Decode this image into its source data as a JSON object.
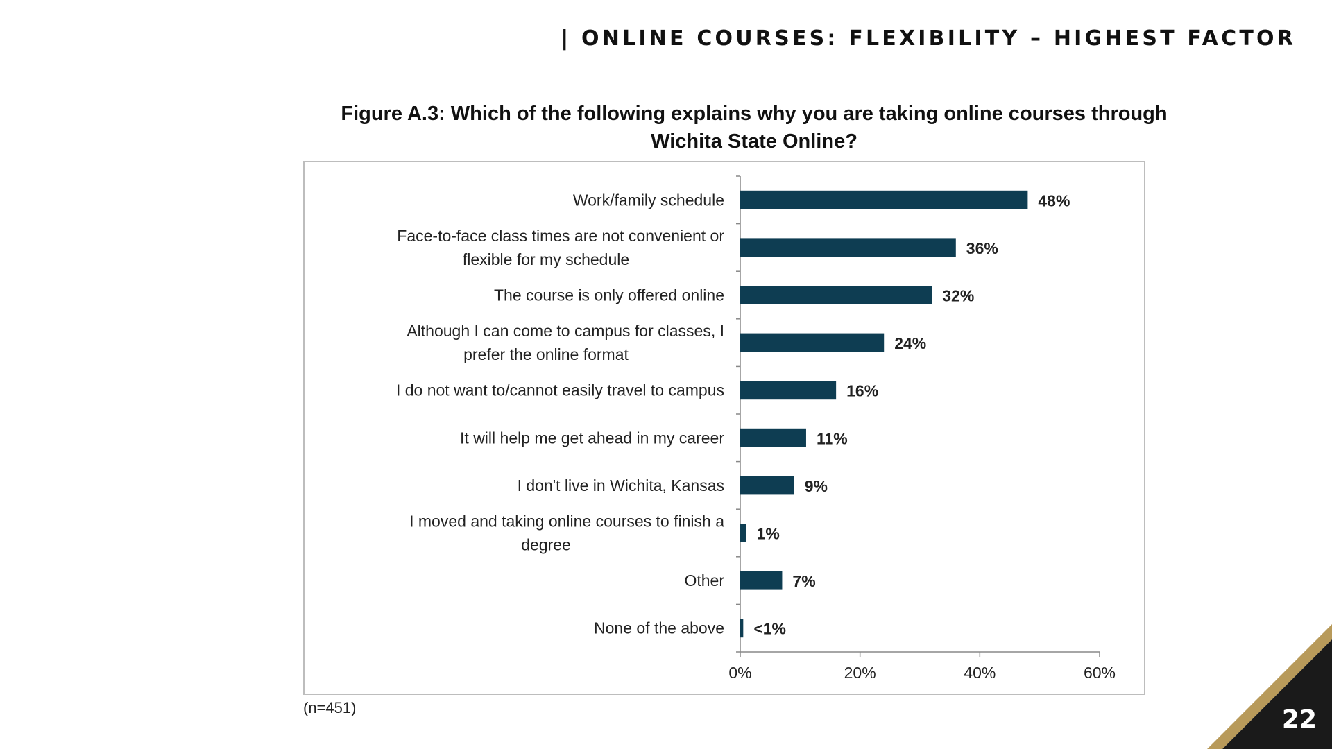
{
  "header": {
    "title": "| ONLINE COURSES: FLEXIBILITY – HIGHEST FACTOR"
  },
  "chart_data": {
    "type": "bar",
    "orientation": "horizontal",
    "title": "Figure A.3: Which of the following explains why you are taking online courses through Wichita State Online?",
    "title_lines": [
      "Figure A.3: Which of the following explains why you are taking online courses through",
      "Wichita State Online?"
    ],
    "categories": [
      "Work/family schedule",
      "Face-to-face class times are not convenient or flexible for my schedule",
      "The course is only offered online",
      "Although I can come to campus for classes, I prefer the online format",
      "I do not want to/cannot easily travel to campus",
      "It will help me get ahead in my career",
      "I don't live in Wichita, Kansas",
      "I moved and taking online courses to finish a degree",
      "Other",
      "None of the above"
    ],
    "category_lines": [
      [
        "Work/family schedule"
      ],
      [
        "Face-to-face class times are not convenient or",
        "flexible for my schedule"
      ],
      [
        "The course is only offered online"
      ],
      [
        "Although I can come to campus for classes, I",
        "prefer the online format"
      ],
      [
        "I do not want to/cannot easily travel to campus"
      ],
      [
        "It will help me get ahead in my career"
      ],
      [
        "I don't live in Wichita, Kansas"
      ],
      [
        "I moved and taking online courses to finish a",
        "degree"
      ],
      [
        "Other"
      ],
      [
        "None of the above"
      ]
    ],
    "values": [
      48,
      36,
      32,
      24,
      16,
      11,
      9,
      1,
      7,
      0.5
    ],
    "data_labels": [
      "48%",
      "36%",
      "32%",
      "24%",
      "16%",
      "11%",
      "9%",
      "1%",
      "7%",
      "<1%"
    ],
    "xlim": [
      0,
      60
    ],
    "xticks": [
      0,
      20,
      40,
      60
    ],
    "xtick_labels": [
      "0%",
      "20%",
      "40%",
      "60%"
    ],
    "xlabel": "",
    "ylabel": "",
    "grid": false,
    "bar_color": "#0e3d52"
  },
  "footnote": "(n=451)",
  "page": {
    "label": "PAGE NUMBER",
    "number": "22",
    "badge_dark": "#1a1a1a",
    "badge_gold": "#b89a5a"
  }
}
